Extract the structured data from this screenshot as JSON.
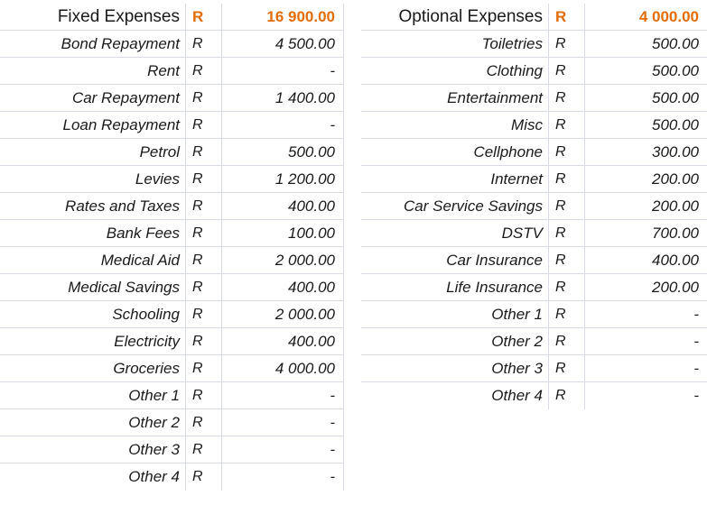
{
  "accent_color": "#e36c09",
  "fixed": {
    "title": "Fixed Expenses",
    "currency": "R",
    "total": "16 900.00",
    "items": [
      {
        "label": "Bond Repayment",
        "currency": "R",
        "amount": "4 500.00"
      },
      {
        "label": "Rent",
        "currency": "R",
        "amount": "-"
      },
      {
        "label": "Car Repayment",
        "currency": "R",
        "amount": "1 400.00"
      },
      {
        "label": "Loan Repayment",
        "currency": "R",
        "amount": "-"
      },
      {
        "label": "Petrol",
        "currency": "R",
        "amount": "500.00"
      },
      {
        "label": "Levies",
        "currency": "R",
        "amount": "1 200.00"
      },
      {
        "label": "Rates and Taxes",
        "currency": "R",
        "amount": "400.00"
      },
      {
        "label": "Bank Fees",
        "currency": "R",
        "amount": "100.00"
      },
      {
        "label": "Medical Aid",
        "currency": "R",
        "amount": "2 000.00"
      },
      {
        "label": "Medical Savings",
        "currency": "R",
        "amount": "400.00"
      },
      {
        "label": "Schooling",
        "currency": "R",
        "amount": "2 000.00"
      },
      {
        "label": "Electricity",
        "currency": "R",
        "amount": "400.00"
      },
      {
        "label": "Groceries",
        "currency": "R",
        "amount": "4 000.00"
      },
      {
        "label": "Other 1",
        "currency": "R",
        "amount": "-"
      },
      {
        "label": "Other 2",
        "currency": "R",
        "amount": "-"
      },
      {
        "label": "Other 3",
        "currency": "R",
        "amount": "-"
      },
      {
        "label": "Other 4",
        "currency": "R",
        "amount": "-"
      }
    ]
  },
  "optional": {
    "title": "Optional Expenses",
    "currency": "R",
    "total": "4 000.00",
    "items": [
      {
        "label": "Toiletries",
        "currency": "R",
        "amount": "500.00"
      },
      {
        "label": "Clothing",
        "currency": "R",
        "amount": "500.00"
      },
      {
        "label": "Entertainment",
        "currency": "R",
        "amount": "500.00"
      },
      {
        "label": "Misc",
        "currency": "R",
        "amount": "500.00"
      },
      {
        "label": "Cellphone",
        "currency": "R",
        "amount": "300.00"
      },
      {
        "label": "Internet",
        "currency": "R",
        "amount": "200.00"
      },
      {
        "label": "Car Service Savings",
        "currency": "R",
        "amount": "200.00"
      },
      {
        "label": "DSTV",
        "currency": "R",
        "amount": "700.00"
      },
      {
        "label": "Car Insurance",
        "currency": "R",
        "amount": "400.00"
      },
      {
        "label": "Life Insurance",
        "currency": "R",
        "amount": "200.00"
      },
      {
        "label": "Other 1",
        "currency": "R",
        "amount": "-"
      },
      {
        "label": "Other 2",
        "currency": "R",
        "amount": "-"
      },
      {
        "label": "Other 3",
        "currency": "R",
        "amount": "-"
      },
      {
        "label": "Other 4",
        "currency": "R",
        "amount": "-"
      }
    ]
  }
}
